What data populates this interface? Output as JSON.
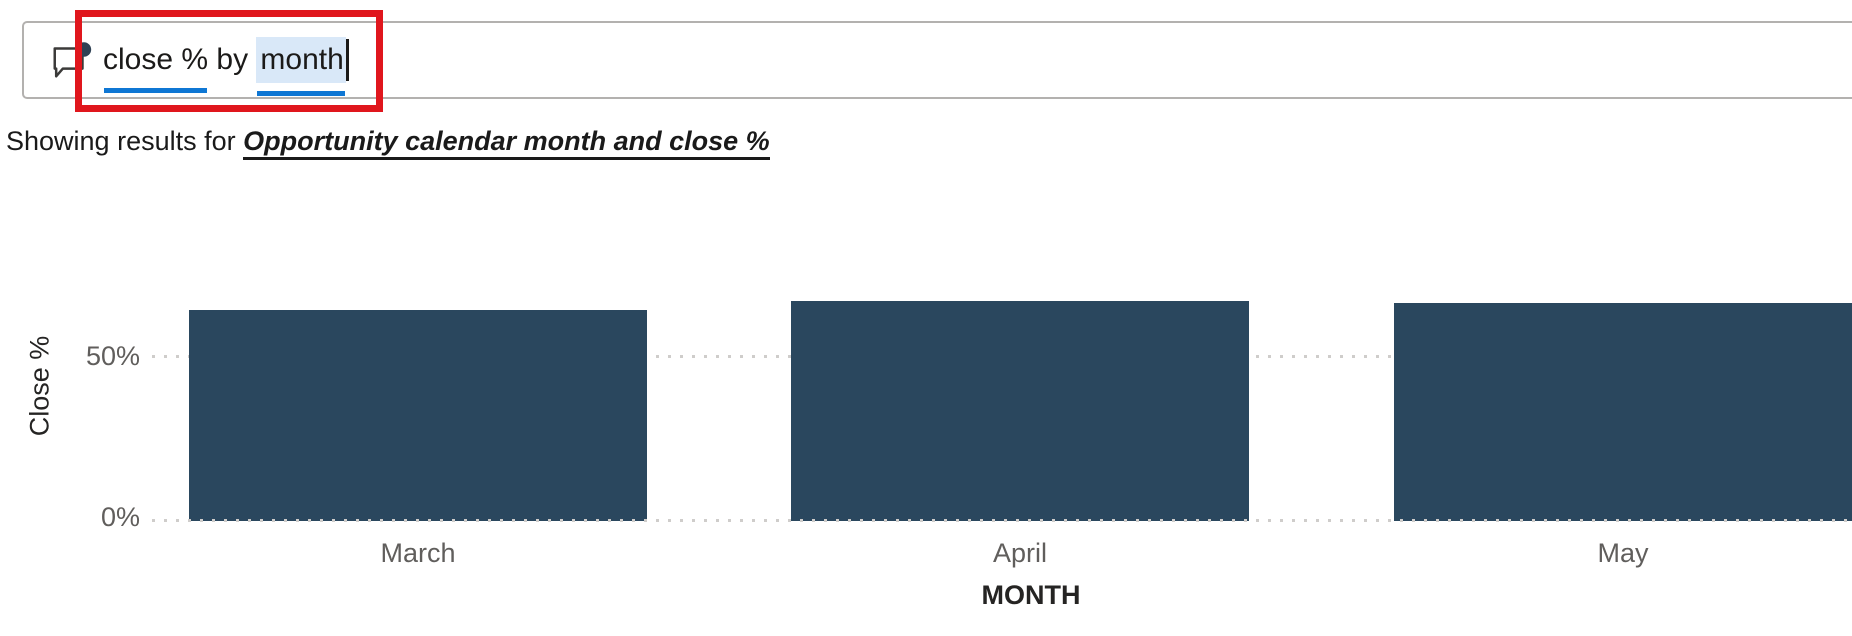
{
  "query_box": {
    "full_text": "close % by month",
    "term_measure": "close %",
    "term_connector": " by ",
    "term_field": "month"
  },
  "results_line": {
    "prefix": "Showing results for ",
    "interpretation": "Opportunity calendar month and close %"
  },
  "chart_data": {
    "type": "bar",
    "title": "",
    "categories": [
      "March",
      "April",
      "May"
    ],
    "values": [
      64.3,
      67.1,
      66.5
    ],
    "xlabel": "MONTH",
    "ylabel": "Close %",
    "yticks": [
      {
        "label": "0%",
        "value": 0
      },
      {
        "label": "50%",
        "value": 50
      }
    ],
    "ylim": [
      0,
      80
    ],
    "grid": "horizontal-dotted",
    "legend": "none",
    "bar_color": "#2A475E"
  },
  "colors": {
    "bar": "#2A475E",
    "term_underline_blue": "#0F77D4",
    "selection_highlight": "#D9E8F8",
    "annotation_red": "#E0161D",
    "axis_tick_text": "#605E5C",
    "axis_title_text": "#252423",
    "input_border": "#B3B1AF"
  },
  "icons": {
    "qna_bubble": "comment-bubble-with-dot-icon"
  }
}
